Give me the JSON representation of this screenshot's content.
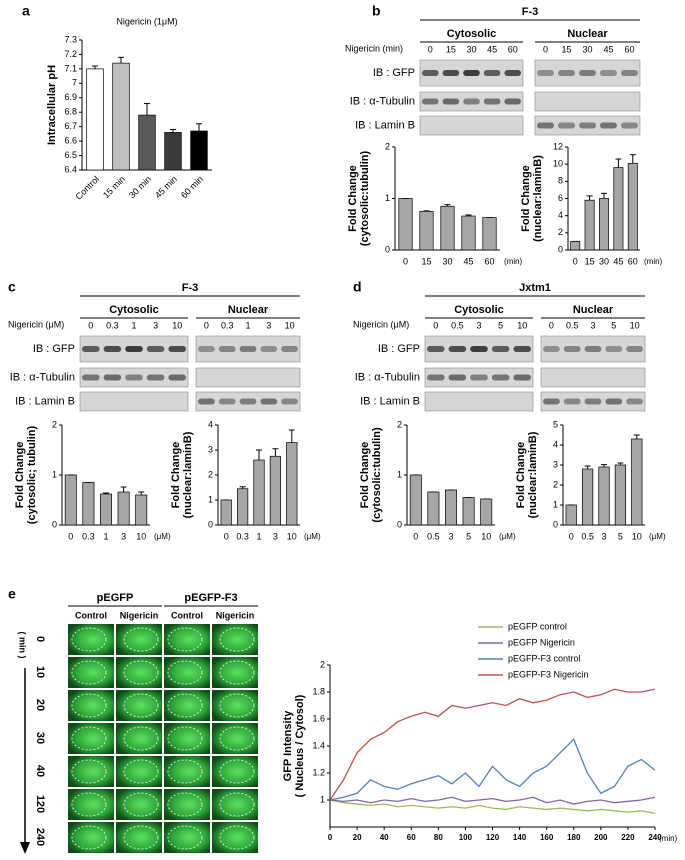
{
  "panel_labels": [
    "a",
    "b",
    "c",
    "d",
    "e"
  ],
  "blots": [
    {
      "title": "F-3",
      "groups": [
        "Cytosolic",
        "Nuclear"
      ],
      "treatment": "Nigericin (min)",
      "doses": [
        "0",
        "15",
        "30",
        "45",
        "60"
      ],
      "rows": [
        "IB : GFP",
        "IB : α-Tubulin",
        "IB : Lamin B"
      ]
    },
    {
      "title": "F-3",
      "groups": [
        "Cytosolic",
        "Nuclear"
      ],
      "treatment": "Nigericin (μM)",
      "doses": [
        "0",
        "0.3",
        "1",
        "3",
        "10"
      ],
      "rows": [
        "IB : GFP",
        "IB : α-Tubulin",
        "IB : Lamin B"
      ]
    },
    {
      "title": "Jxtm1",
      "groups": [
        "Cytosolic",
        "Nuclear"
      ],
      "treatment": "Nigericin (μM)",
      "doses": [
        "0",
        "0.5",
        "3",
        "5",
        "10"
      ],
      "rows": [
        "IB : GFP",
        "IB : α-Tubulin",
        "IB : Lamin B"
      ]
    }
  ],
  "microscopy": {
    "constructs": [
      "pEGFP",
      "pEGFP-F3"
    ],
    "conditions": [
      "Control",
      "Nigericin"
    ],
    "time_label": "( min )",
    "times": [
      "0",
      "10",
      "20",
      "30",
      "40",
      "120",
      "240"
    ]
  },
  "chart_data": [
    {
      "type": "bar",
      "title": "Nigericin (1μM)",
      "ylabel": [
        "Intracellular pH"
      ],
      "categories": [
        "Control",
        "15 min",
        "30 min",
        "45 min",
        "60 min"
      ],
      "values": [
        7.1,
        7.14,
        6.78,
        6.66,
        6.67
      ],
      "errors": [
        0.02,
        0.04,
        0.08,
        0.02,
        0.05
      ],
      "colors": [
        "#ffffff",
        "#bfbfbf",
        "#595959",
        "#3a3a3a",
        "#000000"
      ],
      "ylim": [
        6.4,
        7.3
      ],
      "yticks": [
        6.4,
        6.5,
        6.6,
        6.7,
        6.8,
        6.9,
        7,
        7.1,
        7.2,
        7.3
      ]
    },
    {
      "type": "bar",
      "ylabel": [
        "Fold Change",
        "(cytosolic:tubulin)"
      ],
      "categories": [
        "0",
        "15",
        "30",
        "45",
        "60"
      ],
      "xunit": "(min)",
      "values": [
        1,
        0.75,
        0.85,
        0.66,
        0.63
      ],
      "errors": [
        0,
        0.01,
        0.03,
        0.02,
        0
      ],
      "color": "#a6a6a6",
      "ylim": [
        0,
        2
      ],
      "yticks": [
        0,
        1,
        2
      ]
    },
    {
      "type": "bar",
      "ylabel": [
        "Fold Change",
        "(nuclear:laminB)"
      ],
      "categories": [
        "0",
        "15",
        "30",
        "45",
        "60"
      ],
      "xunit": "(min)",
      "values": [
        1,
        5.8,
        6,
        9.6,
        10.1
      ],
      "errors": [
        0,
        0.5,
        0.6,
        1,
        1
      ],
      "color": "#a6a6a6",
      "ylim": [
        0,
        12
      ],
      "yticks": [
        0,
        2,
        4,
        6,
        8,
        10,
        12
      ]
    },
    {
      "type": "bar",
      "ylabel": [
        "Fold Change",
        "(cytosolic; tubulin)"
      ],
      "categories": [
        "0",
        "0.3",
        "1",
        "3",
        "10"
      ],
      "xunit": "(μM)",
      "values": [
        1,
        0.85,
        0.62,
        0.66,
        0.6
      ],
      "errors": [
        0,
        0,
        0.02,
        0.1,
        0.06
      ],
      "color": "#a6a6a6",
      "ylim": [
        0,
        2
      ],
      "yticks": [
        0,
        1,
        2
      ]
    },
    {
      "type": "bar",
      "ylabel": [
        "Fold Change",
        "(nuclear:laminB)"
      ],
      "categories": [
        "0",
        "0.3",
        "1",
        "3",
        "10"
      ],
      "xunit": "(μM)",
      "values": [
        1,
        1.45,
        2.6,
        2.75,
        3.3
      ],
      "errors": [
        0,
        0.08,
        0.4,
        0.3,
        0.5
      ],
      "color": "#a6a6a6",
      "ylim": [
        0,
        4
      ],
      "yticks": [
        0,
        1,
        2,
        3,
        4
      ]
    },
    {
      "type": "bar",
      "ylabel": [
        "Fold Change",
        "(cytosolic:tubulin)"
      ],
      "categories": [
        "0",
        "0.5",
        "3",
        "5",
        "10"
      ],
      "xunit": "(μM)",
      "values": [
        1,
        0.66,
        0.7,
        0.55,
        0.52
      ],
      "errors": [
        0,
        0,
        0,
        0,
        0
      ],
      "color": "#a6a6a6",
      "ylim": [
        0,
        2
      ],
      "yticks": [
        0,
        1,
        2
      ]
    },
    {
      "type": "bar",
      "ylabel": [
        "Fold Change",
        "(nuclear:laminB)"
      ],
      "categories": [
        "0",
        "0.5",
        "3",
        "5",
        "10"
      ],
      "xunit": "(μM)",
      "values": [
        1,
        2.8,
        2.9,
        3,
        4.3
      ],
      "errors": [
        0,
        0.15,
        0.12,
        0.1,
        0.2
      ],
      "color": "#a6a6a6",
      "ylim": [
        0,
        5
      ],
      "yticks": [
        0,
        1,
        2,
        3,
        4,
        5
      ]
    },
    {
      "type": "line",
      "ylabel": [
        "GFP Intensity",
        "( Nucleus / Cytosol)"
      ],
      "xunit": "(min)",
      "x": [
        0,
        10,
        20,
        30,
        40,
        50,
        60,
        70,
        80,
        90,
        100,
        110,
        120,
        130,
        140,
        150,
        160,
        170,
        180,
        190,
        200,
        210,
        220,
        230,
        240
      ],
      "series": [
        {
          "name": "pEGFP control",
          "color": "#9bbb59",
          "values": [
            1,
            0.98,
            0.97,
            0.96,
            0.97,
            0.95,
            0.96,
            0.95,
            0.94,
            0.95,
            0.94,
            0.96,
            0.94,
            0.93,
            0.95,
            0.94,
            0.93,
            0.94,
            0.93,
            0.92,
            0.93,
            0.92,
            0.91,
            0.92,
            0.9
          ]
        },
        {
          "name": "pEGFP Nigericin",
          "color": "#8064a2",
          "values": [
            1,
            0.99,
            1,
            0.98,
            1,
            0.99,
            1.01,
            0.99,
            1,
            1.02,
            0.99,
            1,
            1.01,
            0.99,
            1,
            1.02,
            0.98,
            1,
            0.97,
            0.99,
            1,
            0.98,
            0.99,
            1,
            1.02
          ]
        },
        {
          "name": "pEGFP-F3 control",
          "color": "#4f81bd",
          "values": [
            1,
            1.02,
            1.05,
            1.15,
            1.1,
            1.08,
            1.12,
            1.15,
            1.18,
            1.12,
            1.2,
            1.1,
            1.25,
            1.15,
            1.1,
            1.2,
            1.25,
            1.35,
            1.45,
            1.2,
            1.05,
            1.1,
            1.25,
            1.3,
            1.22
          ]
        },
        {
          "name": "pEGFP-F3 Nigericin",
          "color": "#c0504d",
          "values": [
            1,
            1.15,
            1.35,
            1.45,
            1.5,
            1.58,
            1.62,
            1.65,
            1.62,
            1.7,
            1.68,
            1.7,
            1.72,
            1.7,
            1.75,
            1.72,
            1.74,
            1.78,
            1.8,
            1.76,
            1.78,
            1.82,
            1.8,
            1.8,
            1.82
          ]
        }
      ],
      "xlim": [
        0,
        240
      ],
      "xticks": [
        0,
        20,
        40,
        60,
        80,
        100,
        120,
        140,
        160,
        180,
        200,
        220,
        240
      ],
      "ylim": [
        0.8,
        2
      ],
      "yticks": [
        1,
        1.2,
        1.4,
        1.6,
        1.8,
        2
      ]
    }
  ]
}
